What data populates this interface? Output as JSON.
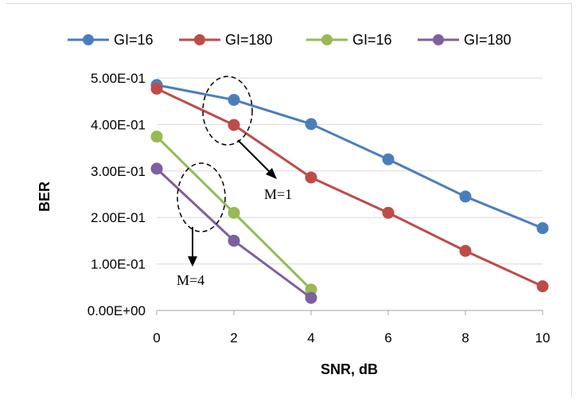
{
  "chart_data": {
    "type": "line",
    "xlabel": "SNR, dB",
    "ylabel": "BER",
    "xlim": [
      0,
      10
    ],
    "ylim": [
      0,
      0.5
    ],
    "x_ticks": [
      0,
      2,
      4,
      6,
      8,
      10
    ],
    "x_tick_labels": [
      "0",
      "2",
      "4",
      "6",
      "8",
      "10"
    ],
    "y_ticks": [
      0,
      0.1,
      0.2,
      0.3,
      0.4,
      0.5
    ],
    "y_tick_labels": [
      "0.00E+00",
      "1.00E-01",
      "2.00E-01",
      "3.00E-01",
      "4.00E-01",
      "5.00E-01"
    ],
    "grid": "horizontal",
    "legend_position": "top",
    "series": [
      {
        "name": "GI=16",
        "color": "#4a7ebb",
        "x": [
          0,
          2,
          4,
          6,
          8,
          10
        ],
        "y": [
          0.485,
          0.453,
          0.401,
          0.325,
          0.245,
          0.177
        ]
      },
      {
        "name": "GI=180",
        "color": "#be4b48",
        "x": [
          0,
          2,
          4,
          6,
          8,
          10
        ],
        "y": [
          0.477,
          0.399,
          0.286,
          0.21,
          0.128,
          0.052
        ]
      },
      {
        "name": "GI=16",
        "color": "#98b954",
        "x": [
          0,
          2,
          4
        ],
        "y": [
          0.374,
          0.21,
          0.045
        ]
      },
      {
        "name": "GI=180",
        "color": "#7d60a0",
        "x": [
          0,
          2,
          4
        ],
        "y": [
          0.305,
          0.15,
          0.027
        ]
      }
    ],
    "annotations": [
      {
        "text": "M=1"
      },
      {
        "text": "M=4"
      }
    ]
  }
}
